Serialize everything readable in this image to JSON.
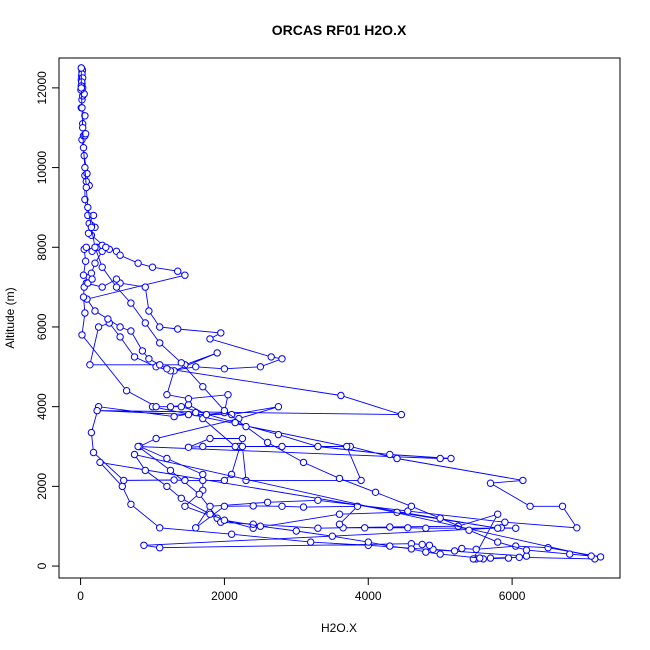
{
  "chart_data": {
    "type": "line",
    "title": "ORCAS RF01 H2O.X",
    "xlabel": "H2O.X",
    "ylabel": "Altitude (m)",
    "xlim": [
      -300,
      7500
    ],
    "ylim": [
      -300,
      12750
    ],
    "xticks": [
      0,
      2000,
      4000,
      6000
    ],
    "yticks": [
      0,
      2000,
      4000,
      6000,
      8000,
      10000,
      12000
    ],
    "grid": false,
    "legend": "none",
    "line_color": "#0000ff",
    "marker": "open-circle",
    "series": [
      {
        "values": [
          [
            5500,
            180
          ],
          [
            5700,
            200
          ],
          [
            6100,
            220
          ],
          [
            7150,
            180
          ],
          [
            7230,
            230
          ],
          [
            6500,
            460
          ],
          [
            6050,
            500
          ],
          [
            5500,
            420
          ],
          [
            5300,
            440
          ],
          [
            5200,
            380
          ],
          [
            4900,
            420
          ],
          [
            4850,
            520
          ],
          [
            4750,
            540
          ],
          [
            4600,
            560
          ],
          [
            1100,
            460
          ],
          [
            880,
            520
          ],
          [
            5850,
            960
          ],
          [
            6050,
            950
          ],
          [
            4800,
            950
          ],
          [
            4550,
            960
          ],
          [
            3950,
            960
          ],
          [
            3650,
            960
          ],
          [
            3600,
            1050
          ],
          [
            3850,
            1500
          ],
          [
            3100,
            1480
          ],
          [
            2800,
            1500
          ],
          [
            2400,
            1510
          ],
          [
            2000,
            1500
          ],
          [
            1600,
            960
          ],
          [
            1800,
            1500
          ],
          [
            2600,
            1600
          ],
          [
            3300,
            1650
          ],
          [
            4550,
            1380
          ],
          [
            5900,
            1100
          ],
          [
            6900,
            960
          ],
          [
            6700,
            1500
          ],
          [
            6250,
            1500
          ],
          [
            5700,
            2080
          ],
          [
            6150,
            2150
          ],
          [
            4400,
            2700
          ],
          [
            3750,
            3000
          ],
          [
            2800,
            3000
          ],
          [
            2200,
            3000
          ],
          [
            1700,
            3000
          ],
          [
            1500,
            2980
          ],
          [
            1800,
            3200
          ],
          [
            2250,
            3200
          ],
          [
            2100,
            2300
          ],
          [
            2000,
            2150
          ],
          [
            1700,
            2150
          ],
          [
            1450,
            2150
          ],
          [
            1300,
            2160
          ],
          [
            600,
            2150
          ],
          [
            180,
            2850
          ],
          [
            150,
            3350
          ],
          [
            250,
            4000
          ],
          [
            1300,
            3750
          ],
          [
            1600,
            3850
          ],
          [
            1700,
            3700
          ],
          [
            2150,
            3000
          ],
          [
            2250,
            3000
          ],
          [
            2300,
            2150
          ],
          [
            3900,
            2150
          ],
          [
            3700,
            3000
          ],
          [
            1000,
            4000
          ],
          [
            1250,
            4000
          ],
          [
            1500,
            4050
          ],
          [
            1750,
            3800
          ],
          [
            2000,
            3850
          ],
          [
            2050,
            4300
          ],
          [
            1500,
            4200
          ],
          [
            1200,
            4300
          ],
          [
            1300,
            4900
          ],
          [
            1900,
            5350
          ],
          [
            1450,
            5050
          ],
          [
            130,
            5050
          ],
          [
            250,
            6000
          ],
          [
            400,
            6100
          ],
          [
            550,
            5750
          ],
          [
            750,
            5250
          ],
          [
            1050,
            5000
          ],
          [
            1250,
            4900
          ],
          [
            1600,
            5000
          ],
          [
            2000,
            4950
          ],
          [
            2500,
            5000
          ],
          [
            2800,
            5200
          ],
          [
            2650,
            5250
          ],
          [
            1800,
            5700
          ],
          [
            1950,
            5850
          ],
          [
            1350,
            5950
          ],
          [
            1100,
            6000
          ],
          [
            950,
            6400
          ],
          [
            900,
            7000
          ],
          [
            550,
            7100
          ],
          [
            500,
            7200
          ],
          [
            300,
            7000
          ],
          [
            80,
            7100
          ],
          [
            120,
            7250
          ],
          [
            150,
            7350
          ],
          [
            200,
            7600
          ],
          [
            300,
            7900
          ],
          [
            400,
            7950
          ],
          [
            500,
            7900
          ],
          [
            550,
            7800
          ],
          [
            800,
            7600
          ],
          [
            1000,
            7500
          ],
          [
            1350,
            7400
          ],
          [
            1450,
            7300
          ],
          [
            90,
            6700
          ],
          [
            200,
            6400
          ],
          [
            380,
            6200
          ],
          [
            550,
            6000
          ],
          [
            700,
            5900
          ],
          [
            860,
            5400
          ],
          [
            950,
            5200
          ],
          [
            1100,
            5050
          ],
          [
            1200,
            4950
          ],
          [
            3620,
            4280
          ],
          [
            4460,
            3800
          ],
          [
            230,
            3900
          ],
          [
            1500,
            3800
          ],
          [
            2100,
            3800
          ],
          [
            2750,
            4000
          ],
          [
            2200,
            3700
          ],
          [
            1050,
            3200
          ],
          [
            820,
            3000
          ],
          [
            1200,
            2700
          ],
          [
            1700,
            2300
          ],
          [
            1700,
            1900
          ],
          [
            1450,
            1500
          ],
          [
            1900,
            1200
          ],
          [
            2400,
            950
          ],
          [
            3600,
            1300
          ],
          [
            4400,
            1350
          ],
          [
            5800,
            950
          ],
          [
            270,
            2600
          ],
          [
            580,
            2000
          ],
          [
            700,
            1550
          ],
          [
            1100,
            960
          ],
          [
            2100,
            800
          ],
          [
            3200,
            600
          ],
          [
            4000,
            520
          ],
          [
            6200,
            250
          ],
          [
            5950,
            200
          ],
          [
            5600,
            180
          ],
          [
            5460,
            180
          ],
          [
            5800,
            1300
          ],
          [
            5250,
            1000
          ],
          [
            4300,
            980
          ],
          [
            3300,
            950
          ],
          [
            2400,
            1050
          ],
          [
            1950,
            1100
          ],
          [
            1650,
            1800
          ],
          [
            1250,
            2400
          ],
          [
            800,
            3000
          ],
          [
            5000,
            2700
          ],
          [
            5150,
            2700
          ],
          [
            4300,
            2800
          ],
          [
            3300,
            3000
          ],
          [
            2750,
            3300
          ],
          [
            2150,
            3600
          ],
          [
            1400,
            4000
          ],
          [
            1050,
            4000
          ],
          [
            640,
            4400
          ],
          [
            20,
            5800
          ],
          [
            60,
            6350
          ],
          [
            40,
            6750
          ],
          [
            50,
            7000
          ],
          [
            100,
            7100
          ],
          [
            160,
            7200
          ],
          [
            40,
            7300
          ],
          [
            70,
            7650
          ],
          [
            50,
            7950
          ],
          [
            80,
            8000
          ],
          [
            160,
            7900
          ],
          [
            230,
            8000
          ],
          [
            300,
            8050
          ],
          [
            350,
            8000
          ],
          [
            150,
            8300
          ],
          [
            110,
            8350
          ],
          [
            200,
            8500
          ],
          [
            150,
            8550
          ],
          [
            120,
            8600
          ],
          [
            180,
            8800
          ],
          [
            100,
            8800
          ],
          [
            60,
            9200
          ],
          [
            60,
            9800
          ],
          [
            120,
            9550
          ],
          [
            80,
            9650
          ],
          [
            90,
            9850
          ],
          [
            50,
            10300
          ],
          [
            20,
            10700
          ],
          [
            40,
            10800
          ],
          [
            60,
            10800
          ],
          [
            70,
            10850
          ],
          [
            30,
            11100
          ],
          [
            60,
            11300
          ],
          [
            10,
            11500
          ],
          [
            20,
            11700
          ],
          [
            30,
            11800
          ],
          [
            50,
            11850
          ],
          [
            30,
            12000
          ],
          [
            20,
            12100
          ],
          [
            10,
            12200
          ],
          [
            15,
            12300
          ],
          [
            20,
            12400
          ],
          [
            10,
            12500
          ],
          [
            25,
            12450
          ],
          [
            20,
            12350
          ],
          [
            30,
            12250
          ],
          [
            15,
            12150
          ],
          [
            10,
            12050
          ],
          [
            5,
            11950
          ]
        ]
      },
      {
        "values": [
          [
            5550,
            200
          ],
          [
            5000,
            300
          ],
          [
            4800,
            350
          ],
          [
            4600,
            430
          ],
          [
            4300,
            500
          ],
          [
            4000,
            600
          ],
          [
            3500,
            750
          ],
          [
            3000,
            880
          ],
          [
            2500,
            1000
          ],
          [
            2000,
            1150
          ],
          [
            1800,
            1300
          ],
          [
            1400,
            1700
          ],
          [
            1200,
            2000
          ],
          [
            900,
            2400
          ],
          [
            750,
            2800
          ],
          [
            7100,
            250
          ],
          [
            6800,
            300
          ],
          [
            6200,
            400
          ],
          [
            5800,
            600
          ],
          [
            5400,
            900
          ],
          [
            5000,
            1200
          ],
          [
            4600,
            1500
          ],
          [
            4100,
            1850
          ],
          [
            3600,
            2200
          ],
          [
            3100,
            2600
          ],
          [
            2600,
            3100
          ],
          [
            2300,
            3500
          ],
          [
            2000,
            3900
          ],
          [
            1700,
            4500
          ],
          [
            1400,
            5100
          ],
          [
            1100,
            5600
          ],
          [
            900,
            6100
          ],
          [
            700,
            6600
          ],
          [
            500,
            7000
          ],
          [
            300,
            7500
          ],
          [
            200,
            8000
          ],
          [
            150,
            8500
          ],
          [
            100,
            9000
          ],
          [
            80,
            9500
          ],
          [
            60,
            10000
          ],
          [
            40,
            10500
          ],
          [
            30,
            11000
          ],
          [
            20,
            11500
          ],
          [
            10,
            12000
          ],
          [
            10,
            12500
          ]
        ]
      }
    ]
  }
}
